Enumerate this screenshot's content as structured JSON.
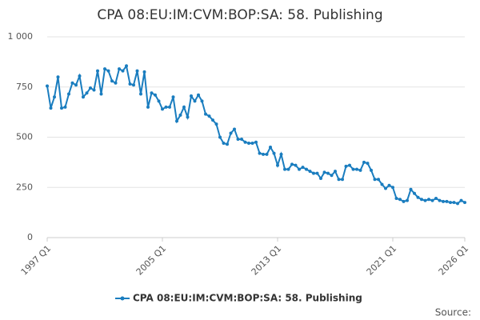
{
  "chart_data": {
    "type": "line",
    "title": "CPA 08:EU:IM:CVM:BOP:SA: 58. Publishing",
    "source": "Source:",
    "categories": [
      "1997 Q1",
      null,
      null,
      null,
      null,
      null,
      null,
      null,
      null,
      null,
      null,
      null,
      null,
      null,
      null,
      null,
      null,
      null,
      null,
      null,
      null,
      null,
      null,
      null,
      null,
      null,
      null,
      null,
      null,
      null,
      null,
      null,
      "2005 Q1",
      null,
      null,
      null,
      null,
      null,
      null,
      null,
      null,
      null,
      null,
      null,
      null,
      null,
      null,
      null,
      null,
      null,
      null,
      null,
      null,
      null,
      null,
      null,
      null,
      null,
      null,
      null,
      null,
      null,
      null,
      null,
      "2013 Q1",
      null,
      null,
      null,
      null,
      null,
      null,
      null,
      null,
      null,
      null,
      null,
      null,
      null,
      null,
      null,
      null,
      null,
      null,
      null,
      null,
      null,
      null,
      null,
      null,
      null,
      null,
      null,
      null,
      null,
      null,
      null,
      "2021 Q1",
      null,
      null,
      null,
      null,
      null,
      null,
      null,
      null,
      null,
      null,
      null,
      null,
      null,
      null,
      null,
      null,
      null,
      null,
      null,
      "2026 Q1"
    ],
    "series": [
      {
        "name": "CPA 08:EU:IM:CVM:BOP:SA: 58. Publishing",
        "color": "#1a7dbf",
        "values": [
          755,
          645,
          700,
          800,
          645,
          650,
          715,
          770,
          760,
          805,
          700,
          720,
          745,
          735,
          830,
          715,
          840,
          830,
          780,
          770,
          840,
          830,
          855,
          765,
          760,
          830,
          715,
          825,
          650,
          720,
          710,
          680,
          640,
          650,
          650,
          700,
          580,
          610,
          650,
          600,
          705,
          680,
          710,
          680,
          615,
          605,
          585,
          565,
          500,
          470,
          465,
          520,
          540,
          490,
          490,
          475,
          470,
          470,
          475,
          420,
          415,
          415,
          450,
          420,
          360,
          415,
          340,
          340,
          365,
          360,
          340,
          350,
          340,
          330,
          320,
          320,
          295,
          325,
          320,
          310,
          330,
          290,
          290,
          355,
          360,
          340,
          340,
          335,
          375,
          370,
          335,
          290,
          290,
          265,
          245,
          260,
          250,
          195,
          190,
          180,
          185,
          240,
          220,
          200,
          190,
          185,
          190,
          185,
          195,
          185,
          180,
          180,
          175,
          175,
          170,
          185,
          175
        ]
      }
    ],
    "ylim": [
      0,
      1000
    ],
    "yticks": [
      0,
      250,
      500,
      750,
      {
        "value": 1000,
        "label": "1 000"
      }
    ],
    "grid": true
  }
}
